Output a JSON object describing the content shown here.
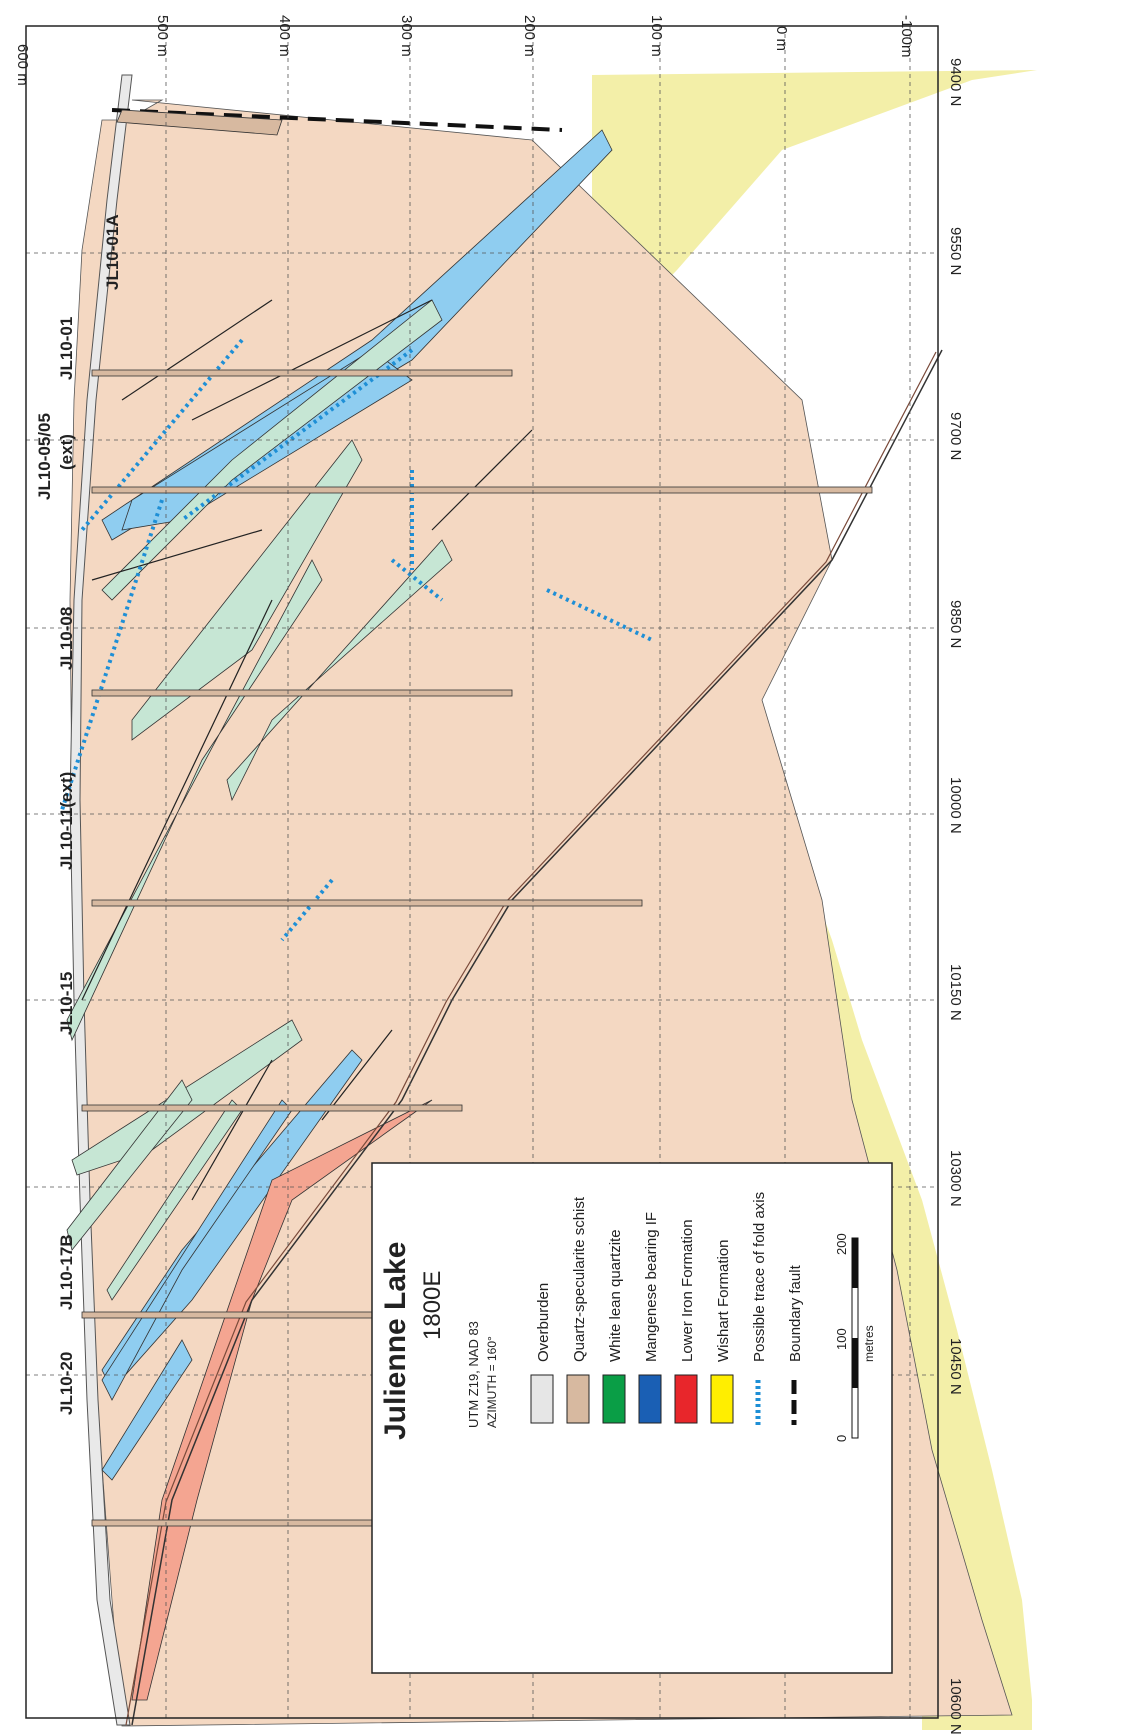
{
  "title": "Julienne Lake",
  "section": "1800E",
  "projection": "UTM Z19, NAD 83",
  "azimuth": "AZIMUTH = 160°",
  "elevation_ticks": [
    "600 m",
    "500 m",
    "400 m",
    "300 m",
    "200 m",
    "100 m",
    "0 m",
    "-100m"
  ],
  "northing_ticks": [
    "9400 N",
    "9550 N",
    "9700 N",
    "9850 N",
    "10000 N",
    "10150 N",
    "10300 N",
    "10450 N",
    "10600 N"
  ],
  "drillholes": [
    "JL10-01A",
    "JL10-01",
    "JL10-05/05",
    "(ext)",
    "JL10-08",
    "JL10-11(ext)",
    "JL10-15",
    "JL10-17B",
    "JL10-20"
  ],
  "legend": {
    "items": [
      {
        "label": "Overburden",
        "color": "#e6e6e6",
        "pattern": "dots"
      },
      {
        "label": "Quartz-specularite schist",
        "color": "#d7b9a0",
        "pattern": "solid"
      },
      {
        "label": "White lean quartzite",
        "color": "#0a9e46",
        "pattern": "solid"
      },
      {
        "label": "Mangenese bearing IF",
        "color": "#1a5fb4",
        "pattern": "solid"
      },
      {
        "label": "Lower Iron Formation",
        "color": "#e8262b",
        "pattern": "solid"
      },
      {
        "label": "Wishart Formation",
        "color": "#ffee00",
        "pattern": "solid"
      }
    ],
    "lines": [
      {
        "label": "Possible trace of fold axis",
        "color": "#1e8fd6",
        "style": "dotted"
      },
      {
        "label": "Boundary fault",
        "color": "#111111",
        "style": "dashed"
      }
    ]
  },
  "scale": {
    "ticks": [
      "0",
      "100",
      "200"
    ],
    "unit": "metres"
  },
  "colors": {
    "schist_fill": "#f4d8c2",
    "wishart_halo": "#f3efa8",
    "manganese_band": "#8fcdf0",
    "white_quartzite_band": "#c6e6d4",
    "lower_if_band": "#f4a591"
  }
}
